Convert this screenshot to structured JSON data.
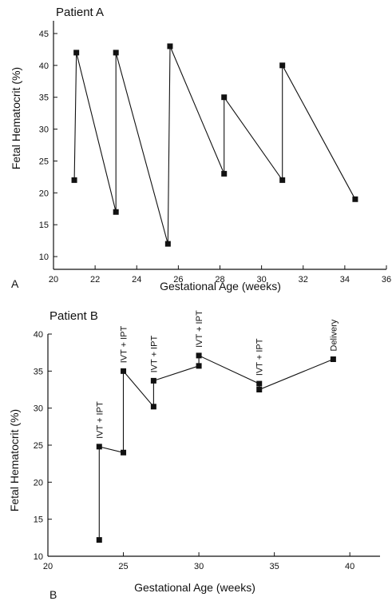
{
  "chart_data": [
    {
      "type": "line",
      "title": "Patient A",
      "panel_label": "A",
      "xlabel": "Gestational Age (weeks)",
      "ylabel": "Fetal Hematocrit (%)",
      "xlim": [
        20,
        36
      ],
      "ylim": [
        8,
        47
      ],
      "xticks": [
        20,
        22,
        24,
        26,
        28,
        30,
        32,
        34,
        36
      ],
      "yticks": [
        10,
        15,
        20,
        25,
        30,
        35,
        40,
        45
      ],
      "grid": false,
      "series": [
        {
          "x": [
            21.0,
            21.1,
            23.0,
            23.0,
            25.5,
            25.6,
            28.2,
            28.2,
            31.0,
            31.0,
            34.5
          ],
          "y": [
            22,
            42,
            17,
            42,
            12,
            43,
            23,
            35,
            22,
            40,
            19
          ]
        }
      ],
      "annotations": []
    },
    {
      "type": "line",
      "title": "Patient B",
      "panel_label": "B",
      "xlabel": "Gestational Age (weeks)",
      "ylabel": "Fetal Hematocrit (%)",
      "xlim": [
        20,
        42
      ],
      "ylim": [
        10,
        40
      ],
      "xticks": [
        20,
        25,
        30,
        35,
        40
      ],
      "yticks": [
        10,
        15,
        20,
        25,
        30,
        35,
        40
      ],
      "grid": false,
      "series": [
        {
          "x": [
            23.4,
            23.4,
            25.0,
            25.0,
            27.0,
            27.0,
            30.0,
            30.0,
            34.0,
            34.0,
            38.9
          ],
          "y": [
            12.2,
            24.8,
            24.0,
            35.0,
            30.2,
            33.7,
            35.7,
            37.1,
            33.3,
            32.5,
            36.6
          ]
        }
      ],
      "annotations": [
        {
          "text": "IVT + IPT",
          "x": 23.4,
          "y": 24.8
        },
        {
          "text": "IVT + IPT",
          "x": 25.0,
          "y": 35.0
        },
        {
          "text": "IVT + IPT",
          "x": 27.0,
          "y": 33.7
        },
        {
          "text": "IVT + IPT",
          "x": 30.0,
          "y": 37.1
        },
        {
          "text": "IVT + IPT",
          "x": 34.0,
          "y": 33.3
        },
        {
          "text": "Delivery",
          "x": 38.9,
          "y": 36.6
        }
      ]
    }
  ]
}
